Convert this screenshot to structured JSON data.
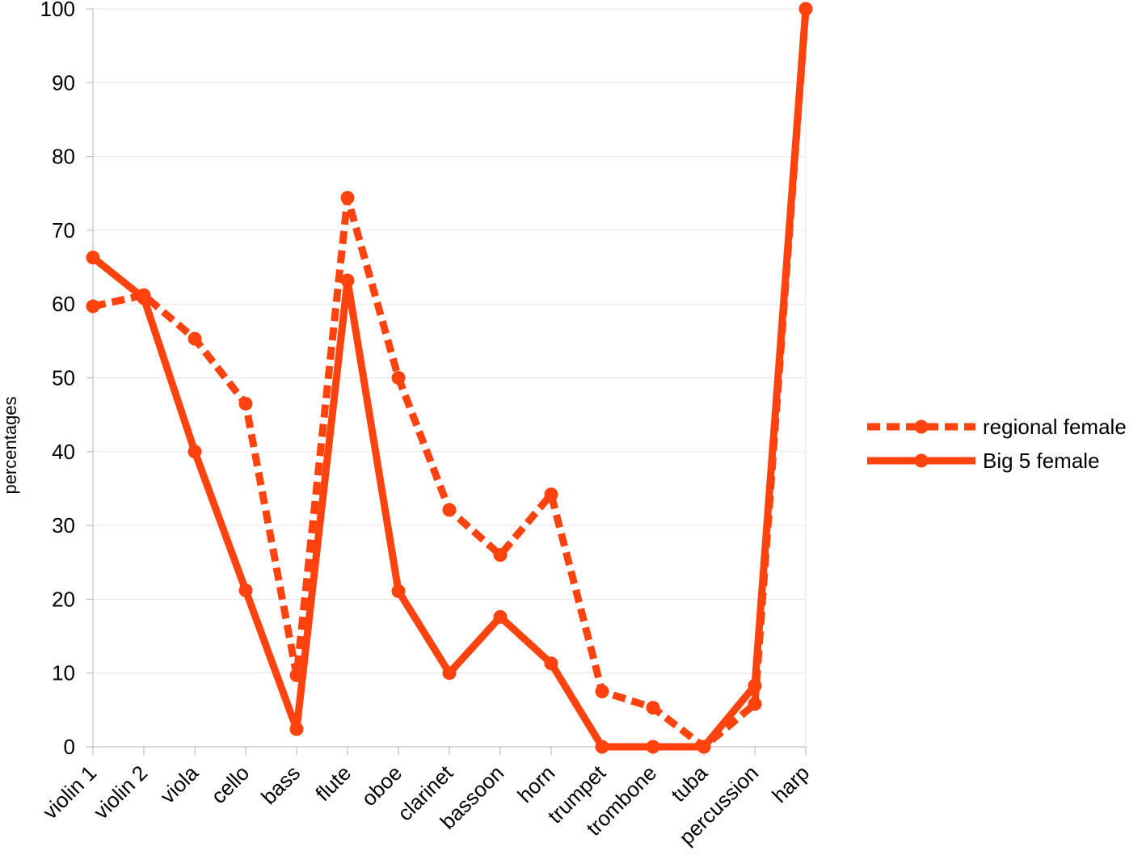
{
  "chart_data": {
    "type": "line",
    "title": "",
    "xlabel": "",
    "ylabel": "percentages",
    "ylim": [
      0,
      100
    ],
    "yticks": [
      0,
      10,
      20,
      30,
      40,
      50,
      60,
      70,
      80,
      90,
      100
    ],
    "grid": "horizontal",
    "legend_position": "right",
    "categories": [
      "violin 1",
      "violin 2",
      "viola",
      "cello",
      "bass",
      "flute",
      "oboe",
      "clarinet",
      "bassoon",
      "horn",
      "trumpet",
      "trombone",
      "tuba",
      "percussion",
      "harp"
    ],
    "series": [
      {
        "name": "regional female",
        "style": "dashed",
        "color": "#ff420e",
        "values": [
          59.7,
          61.2,
          55.3,
          46.5,
          9.7,
          74.4,
          50.0,
          32.1,
          26.0,
          34.2,
          7.5,
          5.3,
          0,
          5.8,
          100
        ]
      },
      {
        "name": "Big 5 female",
        "style": "solid",
        "color": "#ff420e",
        "values": [
          66.3,
          60.8,
          40.0,
          21.2,
          2.4,
          63.2,
          21.1,
          10.0,
          17.6,
          11.3,
          0,
          0,
          0,
          8.3,
          100
        ]
      }
    ]
  }
}
